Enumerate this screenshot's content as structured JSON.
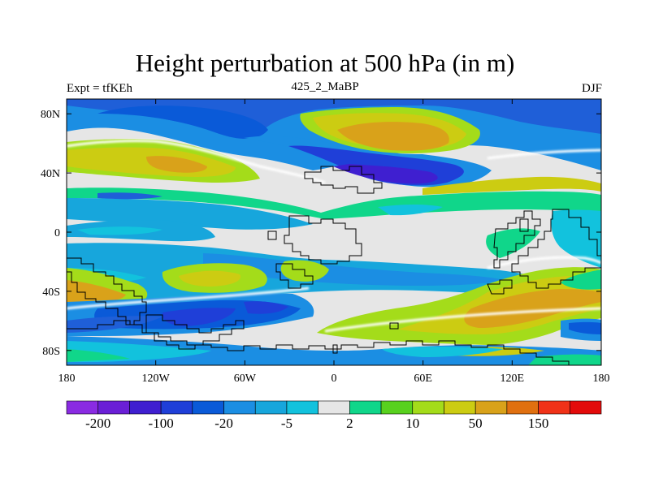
{
  "title": "Height perturbation at 500 hPa (in m)",
  "left_label": "Expt = tfKEh",
  "center_label": "425_2_MaBP",
  "right_label": "DJF",
  "chart_data": {
    "type": "heatmap",
    "x_ticks": [
      "180",
      "120W",
      "60W",
      "0",
      "60E",
      "120E",
      "180"
    ],
    "y_ticks": [
      "80N",
      "40N",
      "0",
      "40S",
      "80S"
    ],
    "colorbar": {
      "colors": [
        "#8a2be2",
        "#6a1fd6",
        "#3f1fd0",
        "#1f3fd8",
        "#0a5ad8",
        "#1b8ee3",
        "#17a6dc",
        "#12c2dd",
        "#e6e6e6",
        "#10d68a",
        "#58d11e",
        "#a4dc1a",
        "#cccc12",
        "#d9a21a",
        "#e07010",
        "#f03218",
        "#e30b0b"
      ],
      "labels": [
        "-200",
        "-100",
        "-20",
        "-5",
        "2",
        "10",
        "50",
        "150"
      ]
    },
    "description_colors": {
      "land_outline": "#000000",
      "zero_line": "#ffffff"
    }
  }
}
